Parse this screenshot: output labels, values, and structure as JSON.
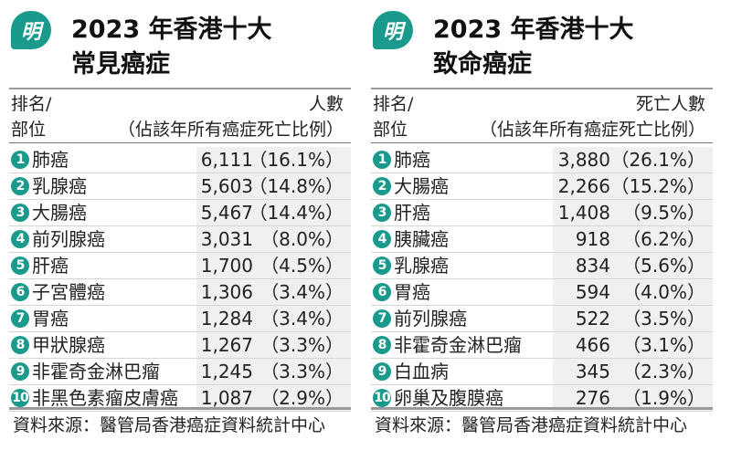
{
  "accent_color": "#1a9a8c",
  "logo_text": "明",
  "tables": [
    {
      "title_line1": "2023 年香港十大",
      "title_line2": "常見癌症",
      "header_left_line1": "排名/",
      "header_left_line2": "部位",
      "header_right_line1": "人數",
      "header_right_line2": "（佔該年所有癌症死亡比例）",
      "rows": [
        {
          "rank": "1",
          "name": "肺癌",
          "value": "6,111",
          "pct": "（16.1%）"
        },
        {
          "rank": "2",
          "name": "乳腺癌",
          "value": "5,603",
          "pct": "（14.8%）"
        },
        {
          "rank": "3",
          "name": "大腸癌",
          "value": "5,467",
          "pct": "（14.4%）"
        },
        {
          "rank": "4",
          "name": "前列腺癌",
          "value": "3,031",
          "pct": "（8.0%）"
        },
        {
          "rank": "5",
          "name": "肝癌",
          "value": "1,700",
          "pct": "（4.5%）"
        },
        {
          "rank": "6",
          "name": "子宮體癌",
          "value": "1,306",
          "pct": "（3.4%）"
        },
        {
          "rank": "7",
          "name": "胃癌",
          "value": "1,284",
          "pct": "（3.4%）"
        },
        {
          "rank": "8",
          "name": "甲狀腺癌",
          "value": "1,267",
          "pct": "（3.3%）"
        },
        {
          "rank": "9",
          "name": "非霍奇金淋巴瘤",
          "value": "1,245",
          "pct": "（3.3%）"
        },
        {
          "rank": "10",
          "name": "非黑色素瘤皮膚癌",
          "value": "1,087",
          "pct": "（2.9%）"
        }
      ],
      "source": "資料來源：醫管局香港癌症資料統計中心"
    },
    {
      "title_line1": "2023 年香港十大",
      "title_line2": "致命癌症",
      "header_left_line1": "排名/",
      "header_left_line2": "部位",
      "header_right_line1": "死亡人數",
      "header_right_line2": "（佔該年所有癌症死亡比例）",
      "rows": [
        {
          "rank": "1",
          "name": "肺癌",
          "value": "3,880",
          "pct": "（26.1%）"
        },
        {
          "rank": "2",
          "name": "大腸癌",
          "value": "2,266",
          "pct": "（15.2%）"
        },
        {
          "rank": "3",
          "name": "肝癌",
          "value": "1,408",
          "pct": "（9.5%）"
        },
        {
          "rank": "4",
          "name": "胰臟癌",
          "value": "918",
          "pct": "（6.2%）"
        },
        {
          "rank": "5",
          "name": "乳腺癌",
          "value": "834",
          "pct": "（5.6%）"
        },
        {
          "rank": "6",
          "name": "胃癌",
          "value": "594",
          "pct": "（4.0%）"
        },
        {
          "rank": "7",
          "name": "前列腺癌",
          "value": "522",
          "pct": "（3.5%）"
        },
        {
          "rank": "8",
          "name": "非霍奇金淋巴瘤",
          "value": "466",
          "pct": "（3.1%）"
        },
        {
          "rank": "9",
          "name": "白血病",
          "value": "345",
          "pct": "（2.3%）"
        },
        {
          "rank": "10",
          "name": "卵巢及腹膜癌",
          "value": "276",
          "pct": "（1.9%）"
        }
      ],
      "source": "資料來源：醫管局香港癌症資料統計中心"
    }
  ]
}
